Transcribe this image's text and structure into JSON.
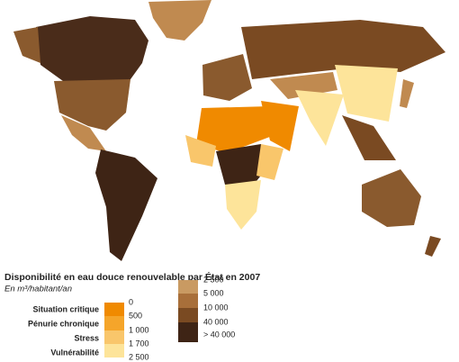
{
  "title": "Disponibilité en eau douce renouvelable par État en 2007",
  "subtitle": "En m³/habitant/an",
  "legend": {
    "categories": [
      "Situation critique",
      "Pénurie chronique",
      "Stress",
      "Vulnérabilité"
    ],
    "left_labels": [
      "0",
      "500",
      "1 000",
      "1 700",
      "2 500"
    ],
    "right_labels": [
      "2 500",
      "5 000",
      "10 000",
      "40 000",
      "> 40 000"
    ]
  }
}
